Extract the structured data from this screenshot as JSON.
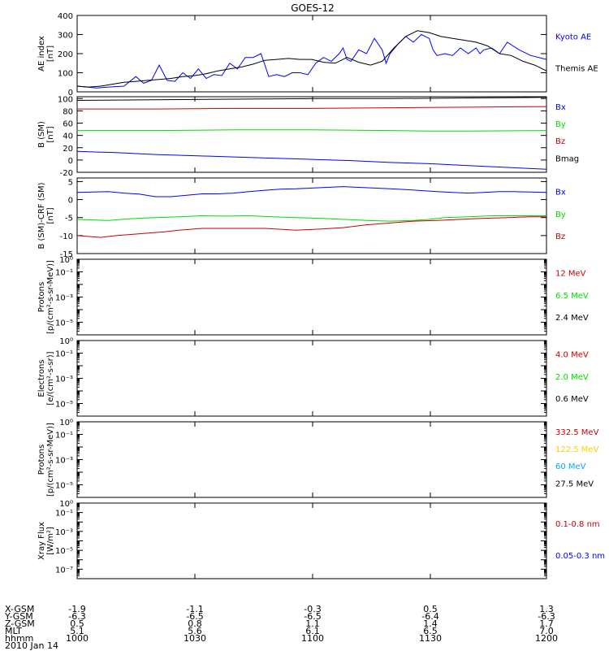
{
  "title": "GOES-12",
  "colors": {
    "blue": "#0000ff",
    "black": "#000000",
    "red": "#cc0000",
    "green": "#00dd00",
    "yellow": "#ffcc00",
    "cyan": "#00aaff"
  },
  "ephemeris": {
    "labels": [
      "X-GSM",
      "Y-GSM",
      "Z-GSM",
      "MLT",
      "hhmm"
    ],
    "columns": [
      [
        "-1.9",
        "-6.3",
        "0.5",
        "5.1",
        "1000"
      ],
      [
        "-1.1",
        "-6.5",
        "0.8",
        "5.6",
        "1030"
      ],
      [
        "-0.3",
        "-6.5",
        "1.1",
        "6.1",
        "1100"
      ],
      [
        "0.5",
        "-6.4",
        "1.4",
        "6.5",
        "1130"
      ],
      [
        "1.3",
        "-6.3",
        "1.7",
        "7.0",
        "1200"
      ]
    ],
    "date": "2010 Jan 14"
  },
  "chart_data": [
    {
      "type": "line",
      "ylabel": [
        "AE index",
        "[nT]"
      ],
      "ylim": [
        0,
        400
      ],
      "yticks": [
        0,
        100,
        200,
        300,
        400
      ],
      "xlim": [
        0,
        120
      ],
      "series": [
        {
          "name": "Kyoto AE",
          "color": "blue",
          "x": [
            0,
            5,
            8,
            12,
            15,
            17,
            19,
            21,
            23,
            25,
            27,
            29,
            31,
            33,
            35,
            37,
            39,
            41,
            43,
            45,
            47,
            49,
            51,
            53,
            55,
            57,
            59,
            61,
            63,
            65,
            67,
            68,
            69,
            70,
            72,
            74,
            76,
            78,
            79,
            80,
            82,
            84,
            86,
            88,
            90,
            91,
            92,
            94,
            96,
            98,
            100,
            102,
            103,
            104,
            106,
            108,
            110,
            113,
            116,
            120
          ],
          "y": [
            30,
            20,
            25,
            30,
            80,
            45,
            60,
            140,
            60,
            55,
            100,
            70,
            120,
            70,
            90,
            85,
            150,
            120,
            180,
            180,
            200,
            80,
            90,
            80,
            100,
            100,
            90,
            150,
            180,
            160,
            200,
            230,
            170,
            160,
            220,
            200,
            280,
            220,
            150,
            200,
            250,
            290,
            260,
            300,
            280,
            220,
            190,
            200,
            190,
            230,
            200,
            230,
            200,
            220,
            230,
            200,
            260,
            220,
            190,
            170
          ]
        },
        {
          "name": "Themis AE",
          "color": "black",
          "x": [
            0,
            3,
            6,
            9,
            12,
            15,
            18,
            21,
            24,
            27,
            30,
            33,
            36,
            39,
            42,
            45,
            48,
            51,
            54,
            57,
            60,
            63,
            66,
            69,
            72,
            75,
            78,
            81,
            84,
            87,
            90,
            93,
            96,
            99,
            102,
            105,
            108,
            111,
            114,
            117,
            120
          ],
          "y": [
            30,
            25,
            30,
            40,
            50,
            55,
            60,
            65,
            70,
            80,
            85,
            95,
            110,
            120,
            130,
            145,
            165,
            170,
            175,
            170,
            170,
            155,
            150,
            180,
            155,
            140,
            160,
            230,
            290,
            320,
            310,
            290,
            280,
            270,
            260,
            240,
            200,
            190,
            160,
            140,
            110
          ]
        }
      ]
    },
    {
      "type": "line",
      "ylabel": [
        "B (SM)",
        "[nT]"
      ],
      "ylim": [
        -20,
        103
      ],
      "yticks": [
        -20,
        0,
        20,
        40,
        60,
        80,
        100
      ],
      "xlim": [
        0,
        120
      ],
      "series": [
        {
          "name": "Bx",
          "color": "blue",
          "x": [
            0,
            10,
            20,
            30,
            40,
            50,
            60,
            70,
            80,
            90,
            100,
            110,
            120
          ],
          "y": [
            14,
            12,
            9,
            7,
            5,
            3,
            1,
            -1,
            -4,
            -6,
            -9,
            -12,
            -15
          ]
        },
        {
          "name": "By",
          "color": "green",
          "x": [
            0,
            20,
            40,
            60,
            80,
            90,
            100,
            120
          ],
          "y": [
            48,
            48,
            49,
            49,
            48,
            47,
            47,
            48
          ]
        },
        {
          "name": "Bz",
          "color": "red",
          "x": [
            0,
            20,
            40,
            60,
            80,
            100,
            120
          ],
          "y": [
            83,
            83,
            84,
            84,
            85,
            86,
            87
          ]
        },
        {
          "name": "Bmag",
          "color": "black",
          "x": [
            0,
            20,
            40,
            60,
            80,
            100,
            120
          ],
          "y": [
            97,
            98,
            99,
            100,
            100,
            101,
            102
          ]
        }
      ]
    },
    {
      "type": "line",
      "ylabel": [
        "B (SM)-CRF (SM)",
        "[nT]"
      ],
      "ylim": [
        -15,
        6
      ],
      "yticks": [
        -15,
        -10,
        -5,
        0,
        5
      ],
      "xlim": [
        0,
        120
      ],
      "series": [
        {
          "name": "Bx",
          "color": "blue",
          "x": [
            0,
            8,
            12,
            16,
            20,
            24,
            28,
            32,
            36,
            40,
            44,
            48,
            52,
            56,
            60,
            64,
            68,
            72,
            76,
            80,
            84,
            88,
            92,
            96,
            100,
            104,
            108,
            112,
            116,
            120
          ],
          "y": [
            2,
            2.2,
            1.8,
            1.5,
            0.8,
            0.8,
            1.2,
            1.6,
            1.6,
            1.8,
            2.2,
            2.6,
            2.9,
            3,
            3.2,
            3.4,
            3.6,
            3.4,
            3.2,
            3,
            2.8,
            2.5,
            2.2,
            2,
            1.8,
            2,
            2.2,
            2.2,
            2.1,
            2
          ]
        },
        {
          "name": "By",
          "color": "green",
          "x": [
            0,
            8,
            14,
            20,
            26,
            32,
            38,
            44,
            50,
            56,
            62,
            68,
            74,
            80,
            86,
            90,
            94,
            100,
            106,
            112,
            120
          ],
          "y": [
            -5.5,
            -5.8,
            -5.3,
            -5,
            -4.8,
            -4.5,
            -4.6,
            -4.5,
            -4.8,
            -5,
            -5.2,
            -5.5,
            -5.8,
            -6,
            -5.8,
            -5.5,
            -5,
            -4.8,
            -4.5,
            -4.5,
            -4.5
          ]
        },
        {
          "name": "Bz",
          "color": "red",
          "x": [
            0,
            6,
            10,
            16,
            22,
            26,
            32,
            40,
            48,
            56,
            62,
            68,
            74,
            80,
            86,
            92,
            98,
            104,
            110,
            116,
            120
          ],
          "y": [
            -10,
            -10.5,
            -10,
            -9.5,
            -9,
            -8.5,
            -8,
            -8,
            -8,
            -8.5,
            -8.2,
            -7.8,
            -7,
            -6.5,
            -6,
            -5.8,
            -5.5,
            -5.2,
            -5,
            -4.8,
            -4.8
          ]
        }
      ]
    },
    {
      "type": "line",
      "log": true,
      "ylabel": [
        "Protons",
        "[p/(cm²-s-sr-MeV)]"
      ],
      "ylim": [
        -6,
        0
      ],
      "xlim": [
        0,
        120
      ],
      "series": [
        {
          "name": "12 MeV",
          "color": "red",
          "x": [],
          "y": []
        },
        {
          "name": "6.5 MeV",
          "color": "green",
          "x": [],
          "y": []
        },
        {
          "name": "2.4 MeV",
          "color": "black",
          "x": [],
          "y": []
        }
      ]
    },
    {
      "type": "line",
      "log": true,
      "ylabel": [
        "Electrons",
        "[e/(cm²-s-sr)]"
      ],
      "ylim": [
        -6,
        0
      ],
      "xlim": [
        0,
        120
      ],
      "series": [
        {
          "name": "4.0 MeV",
          "color": "red",
          "x": [],
          "y": []
        },
        {
          "name": "2.0 MeV",
          "color": "green",
          "x": [],
          "y": []
        },
        {
          "name": "0.6 MeV",
          "color": "black",
          "x": [],
          "y": []
        }
      ]
    },
    {
      "type": "line",
      "log": true,
      "ylabel": [
        "Protons",
        "[p/(cm²-s-sr-MeV)]"
      ],
      "ylim": [
        -6,
        0
      ],
      "xlim": [
        0,
        120
      ],
      "series": [
        {
          "name": "332.5 MeV",
          "color": "red",
          "x": [],
          "y": []
        },
        {
          "name": "122.5 MeV",
          "color": "yellow",
          "x": [],
          "y": []
        },
        {
          "name": "60 MeV",
          "color": "cyan",
          "x": [],
          "y": []
        },
        {
          "name": "27.5 MeV",
          "color": "black",
          "x": [],
          "y": []
        }
      ]
    },
    {
      "type": "line",
      "log": true,
      "ylabel": [
        "Xray Flux",
        "[W/m²]"
      ],
      "ylim": [
        -8,
        0
      ],
      "xlim": [
        0,
        120
      ],
      "series": [
        {
          "name": "0.1-0.8 nm",
          "color": "red",
          "x": [],
          "y": []
        },
        {
          "name": "0.05-0.3 nm",
          "color": "blue",
          "x": [],
          "y": []
        }
      ]
    }
  ]
}
